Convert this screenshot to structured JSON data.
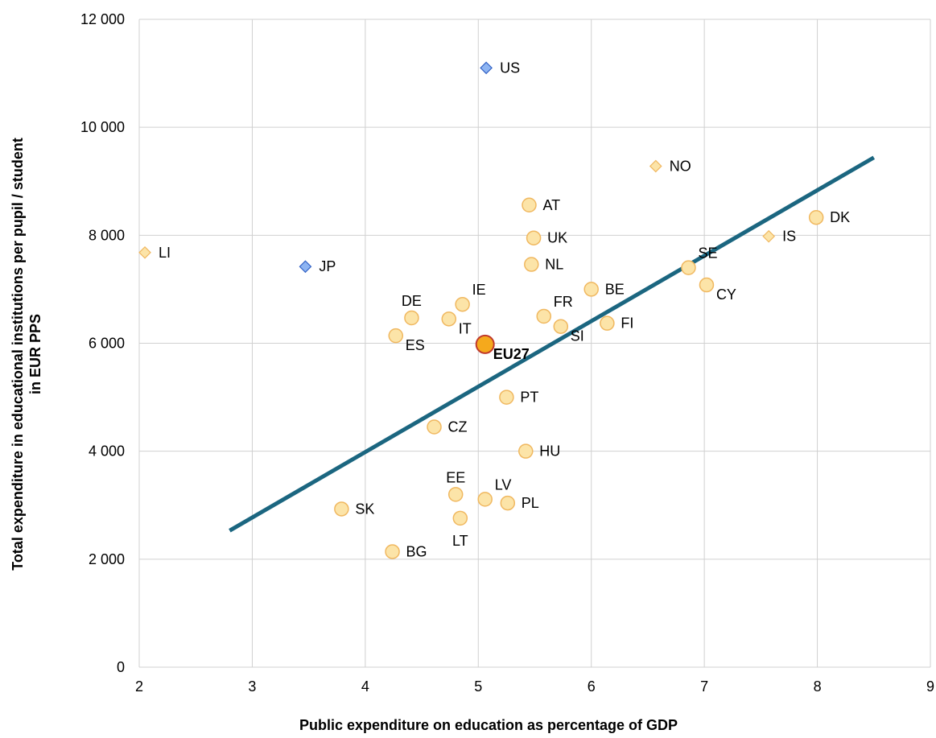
{
  "chart_data": {
    "type": "scatter",
    "xlabel": "Public expenditure on education as percentage of GDP",
    "ylabel_line1": "Total expenditure in educational institutions per pupil / student",
    "ylabel_line2": "in EUR PPS",
    "xlim": [
      2,
      9
    ],
    "ylim": [
      0,
      12000
    ],
    "x_ticks": [
      2,
      3,
      4,
      5,
      6,
      7,
      8,
      9
    ],
    "x_tick_labels": [
      "2",
      "3",
      "4",
      "5",
      "6",
      "7",
      "8",
      "9"
    ],
    "y_ticks": [
      0,
      2000,
      4000,
      6000,
      8000,
      10000,
      12000
    ],
    "y_tick_labels": [
      "0",
      "2 000",
      "4 000",
      "6 000",
      "8 000",
      "10 000",
      "12 000"
    ],
    "grid": true,
    "colors": {
      "eu_member": "#FCE4A8",
      "eu_member_stroke": "#F0B860",
      "eu27": "#F5A91C",
      "eu27_stroke": "#C0392B",
      "efta": "#FCE4A8",
      "efta_stroke": "#F0B860",
      "non_eu": "#8DB4F2",
      "non_eu_stroke": "#2F5FC4",
      "trendline": "#1B6680",
      "grid": "#D0D0D0"
    },
    "trendline": {
      "x1": 2.8,
      "y1": 2530,
      "x2": 8.5,
      "y2": 9440
    },
    "points": [
      {
        "label": "US",
        "x": 5.07,
        "y": 11100,
        "group": "non_eu",
        "marker": "diamond",
        "label_pos": "right"
      },
      {
        "label": "JP",
        "x": 3.47,
        "y": 7420,
        "group": "non_eu",
        "marker": "diamond",
        "label_pos": "right"
      },
      {
        "label": "NO",
        "x": 6.57,
        "y": 9280,
        "group": "efta",
        "marker": "diamond",
        "label_pos": "right"
      },
      {
        "label": "IS",
        "x": 7.57,
        "y": 7980,
        "group": "efta",
        "marker": "diamond",
        "label_pos": "right"
      },
      {
        "label": "LI",
        "x": 2.05,
        "y": 7680,
        "group": "efta",
        "marker": "diamond",
        "label_pos": "right"
      },
      {
        "label": "AT",
        "x": 5.45,
        "y": 8560,
        "group": "eu_member",
        "marker": "circle",
        "label_pos": "right"
      },
      {
        "label": "UK",
        "x": 5.49,
        "y": 7950,
        "group": "eu_member",
        "marker": "circle",
        "label_pos": "right"
      },
      {
        "label": "NL",
        "x": 5.47,
        "y": 7460,
        "group": "eu_member",
        "marker": "circle",
        "label_pos": "right"
      },
      {
        "label": "DK",
        "x": 7.99,
        "y": 8330,
        "group": "eu_member",
        "marker": "circle",
        "label_pos": "right"
      },
      {
        "label": "SE",
        "x": 6.86,
        "y": 7400,
        "group": "eu_member",
        "marker": "circle",
        "label_pos": "upright"
      },
      {
        "label": "CY",
        "x": 7.02,
        "y": 7080,
        "group": "eu_member",
        "marker": "circle",
        "label_pos": "lowright"
      },
      {
        "label": "BE",
        "x": 6.0,
        "y": 7000,
        "group": "eu_member",
        "marker": "circle",
        "label_pos": "right"
      },
      {
        "label": "FI",
        "x": 6.14,
        "y": 6370,
        "group": "eu_member",
        "marker": "circle",
        "label_pos": "right"
      },
      {
        "label": "FR",
        "x": 5.58,
        "y": 6500,
        "group": "eu_member",
        "marker": "circle",
        "label_pos": "upright"
      },
      {
        "label": "SI",
        "x": 5.73,
        "y": 6310,
        "group": "eu_member",
        "marker": "circle",
        "label_pos": "lowright"
      },
      {
        "label": "IE",
        "x": 4.86,
        "y": 6720,
        "group": "eu_member",
        "marker": "circle",
        "label_pos": "upright"
      },
      {
        "label": "IT",
        "x": 4.74,
        "y": 6450,
        "group": "eu_member",
        "marker": "circle",
        "label_pos": "lowright"
      },
      {
        "label": "DE",
        "x": 4.41,
        "y": 6470,
        "group": "eu_member",
        "marker": "circle",
        "label_pos": "above"
      },
      {
        "label": "ES",
        "x": 4.27,
        "y": 6140,
        "group": "eu_member",
        "marker": "circle",
        "label_pos": "lowright"
      },
      {
        "label": "EU27",
        "x": 5.06,
        "y": 5980,
        "group": "eu27",
        "marker": "circle_big",
        "label_pos": "lowright"
      },
      {
        "label": "PT",
        "x": 5.25,
        "y": 5000,
        "group": "eu_member",
        "marker": "circle",
        "label_pos": "right"
      },
      {
        "label": "CZ",
        "x": 4.61,
        "y": 4450,
        "group": "eu_member",
        "marker": "circle",
        "label_pos": "right"
      },
      {
        "label": "HU",
        "x": 5.42,
        "y": 4000,
        "group": "eu_member",
        "marker": "circle",
        "label_pos": "right"
      },
      {
        "label": "EE",
        "x": 4.8,
        "y": 3200,
        "group": "eu_member",
        "marker": "circle",
        "label_pos": "above"
      },
      {
        "label": "LV",
        "x": 5.06,
        "y": 3110,
        "group": "eu_member",
        "marker": "circle",
        "label_pos": "upright"
      },
      {
        "label": "PL",
        "x": 5.26,
        "y": 3040,
        "group": "eu_member",
        "marker": "circle",
        "label_pos": "right"
      },
      {
        "label": "LT",
        "x": 4.84,
        "y": 2760,
        "group": "eu_member",
        "marker": "circle",
        "label_pos": "below"
      },
      {
        "label": "SK",
        "x": 3.79,
        "y": 2930,
        "group": "eu_member",
        "marker": "circle",
        "label_pos": "right"
      },
      {
        "label": "BG",
        "x": 4.24,
        "y": 2140,
        "group": "eu_member",
        "marker": "circle",
        "label_pos": "right"
      }
    ]
  }
}
